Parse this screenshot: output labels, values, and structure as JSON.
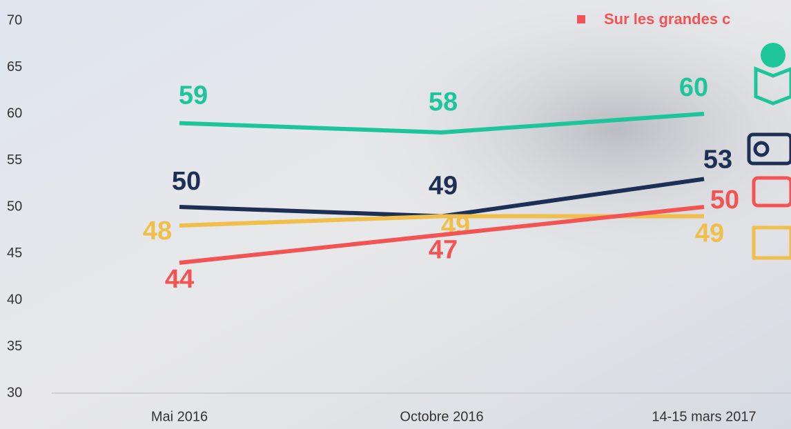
{
  "chart_data": {
    "type": "line",
    "categories": [
      "Mai 2016",
      "Octobre 2016",
      "14-15 mars 2017"
    ],
    "series": [
      {
        "color": "#1fc59a",
        "values": [
          59,
          58,
          60
        ]
      },
      {
        "color": "#1d2f55",
        "values": [
          50,
          49,
          53
        ]
      },
      {
        "color": "#f0be4a",
        "values": [
          48,
          49,
          49
        ]
      },
      {
        "name": "Sur les grandes c",
        "color": "#f25454",
        "values": [
          44,
          47,
          50
        ]
      }
    ],
    "ylim": [
      30,
      70
    ],
    "yticks": [
      30,
      35,
      40,
      45,
      50,
      55,
      60,
      65,
      70
    ]
  }
}
